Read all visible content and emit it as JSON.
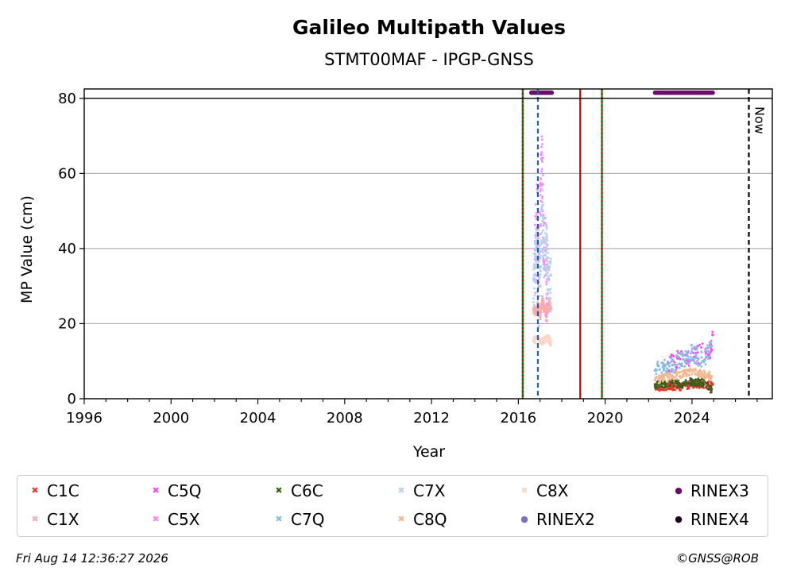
{
  "chart_data": {
    "type": "scatter",
    "title": "Galileo Multipath Values",
    "subtitle": "STMT00MAF - IPGP-GNSS",
    "xlabel": "Year",
    "ylabel": "MP Value (cm)",
    "xlim": [
      1996,
      2027.7
    ],
    "ylim": [
      0,
      82.5
    ],
    "x_ticks": [
      1996,
      2000,
      2004,
      2008,
      2012,
      2016,
      2020,
      2024
    ],
    "x_tick_labels": [
      "1996",
      "2000",
      "2004",
      "2008",
      "2012",
      "2016",
      "2020",
      "2024"
    ],
    "y_ticks": [
      0,
      20,
      40,
      60,
      80
    ],
    "y_tick_labels": [
      "0",
      "20",
      "40",
      "60",
      "80"
    ],
    "grid": "horizontal",
    "legend_position": "bottom",
    "vertical_lines": [
      {
        "x": 2016.2,
        "color": "#008000",
        "style": "solid"
      },
      {
        "x": 2016.2,
        "color": "#cc0000",
        "style": "dotted"
      },
      {
        "x": 2016.9,
        "color": "#1f5fa8",
        "style": "dashed"
      },
      {
        "x": 2018.85,
        "color": "#cc0000",
        "style": "solid"
      },
      {
        "x": 2019.85,
        "color": "#008000",
        "style": "solid"
      },
      {
        "x": 2019.85,
        "color": "#cc0000",
        "style": "dotted"
      },
      {
        "x": 2026.62,
        "color": "#000000",
        "style": "dashed",
        "label": "Now"
      }
    ],
    "series": [
      {
        "name": "C1C",
        "marker": "x",
        "color": "#e8372a",
        "segments": [
          {
            "x": [
              2022.3,
              2022.6,
              2022.9,
              2023.2,
              2023.5,
              2023.8,
              2024.1,
              2024.4,
              2024.7,
              2024.95
            ],
            "y": [
              3.2,
              3.1,
              3.3,
              3.4,
              3.2,
              3.5,
              4.0,
              3.8,
              3.6,
              3.9
            ]
          }
        ]
      },
      {
        "name": "C1X",
        "marker": "x",
        "color": "#ffaaaa",
        "segments": [
          {
            "x": [
              2016.7,
              2016.8,
              2016.9,
              2017.0,
              2017.1,
              2017.2,
              2017.3,
              2017.4,
              2017.5
            ],
            "y": [
              24,
              23,
              25,
              22,
              26,
              24,
              23,
              25,
              24
            ]
          }
        ]
      },
      {
        "name": "C5Q",
        "marker": "x",
        "color": "#ff44ff",
        "segments": [
          {
            "x": [
              2022.9,
              2024.9,
              2024.95
            ],
            "y": [
              9.5,
              13.0,
              17.0
            ]
          }
        ]
      },
      {
        "name": "C5X",
        "marker": "x",
        "color": "#ff88ff",
        "segments": [
          {
            "x": [
              2016.75,
              2016.85,
              2016.95,
              2017.05,
              2017.2,
              2017.35
            ],
            "y": [
              35,
              48,
              30,
              65,
              40,
              28
            ]
          }
        ]
      },
      {
        "name": "C6C",
        "marker": "x",
        "color": "#3a5f1a",
        "segments": [
          {
            "x": [
              2022.3,
              2022.7,
              2023.1,
              2023.6,
              2024.0,
              2024.5,
              2024.9
            ],
            "y": [
              3.8,
              4.0,
              4.1,
              3.9,
              4.6,
              4.3,
              2.5
            ]
          }
        ]
      },
      {
        "name": "C7Q",
        "marker": "x",
        "color": "#88bbe6",
        "segments": [
          {
            "x": [
              2022.3,
              2022.7,
              2023.1,
              2023.6,
              2024.0,
              2024.5,
              2024.9
            ],
            "y": [
              7.5,
              8.0,
              9.0,
              10.5,
              12.5,
              10.0,
              14.0
            ]
          }
        ]
      },
      {
        "name": "C7X",
        "marker": "x",
        "color": "#b8d0ea",
        "segments": [
          {
            "x": [
              2016.7,
              2016.8,
              2016.9,
              2017.0,
              2017.1,
              2017.2,
              2017.3,
              2017.4,
              2017.5
            ],
            "y": [
              32,
              38,
              45,
              30,
              50,
              35,
              40,
              29,
              33
            ]
          }
        ]
      },
      {
        "name": "C8Q",
        "marker": "x",
        "color": "#f3b88f",
        "segments": [
          {
            "x": [
              2022.3,
              2022.7,
              2023.1,
              2023.6,
              2024.0,
              2024.5,
              2024.9
            ],
            "y": [
              5.0,
              5.5,
              6.0,
              6.5,
              7.5,
              6.5,
              6.0
            ]
          }
        ]
      },
      {
        "name": "C8X",
        "marker": "x",
        "color": "#fbd6c8",
        "segments": [
          {
            "x": [
              2016.7,
              2016.9,
              2017.1,
              2017.3,
              2017.5
            ],
            "y": [
              15.5,
              16.0,
              15.0,
              16.5,
              15.0
            ]
          }
        ]
      },
      {
        "name": "RINEX2",
        "marker": "o",
        "color": "#7c6fc0",
        "segments": []
      },
      {
        "name": "RINEX3",
        "marker": "o",
        "color": "#6a0f6a",
        "segments": [
          {
            "x_range": [
              2016.6,
              2017.55
            ],
            "y": 81.5
          },
          {
            "x_range": [
              2022.3,
              2025.0
            ],
            "y": 81.5
          }
        ]
      },
      {
        "name": "RINEX4",
        "marker": "o",
        "color": "#1a001a",
        "segments": []
      }
    ]
  },
  "legend_items": [
    {
      "name": "C1C",
      "symbol": "✖",
      "color": "#e8372a"
    },
    {
      "name": "C1X",
      "symbol": "✖",
      "color": "#ffaaaa"
    },
    {
      "name": "C5Q",
      "symbol": "✖",
      "color": "#ff44ff"
    },
    {
      "name": "C5X",
      "symbol": "✖",
      "color": "#ff88ff"
    },
    {
      "name": "C6C",
      "symbol": "✖",
      "color": "#3a5f1a"
    },
    {
      "name": "C7Q",
      "symbol": "✖",
      "color": "#88bbe6"
    },
    {
      "name": "C7X",
      "symbol": "✖",
      "color": "#b8d0ea"
    },
    {
      "name": "C8Q",
      "symbol": "✖",
      "color": "#f3b88f"
    },
    {
      "name": "C8X",
      "symbol": "✖",
      "color": "#fbd6c8"
    },
    {
      "name": "RINEX2",
      "symbol": "●",
      "color": "#7c6fc0"
    },
    {
      "name": "RINEX3",
      "symbol": "●",
      "color": "#6a0f6a"
    },
    {
      "name": "RINEX4",
      "symbol": "●",
      "color": "#1a001a"
    }
  ],
  "footer": {
    "timestamp": "Fri Aug 14 12:36:27 2026",
    "credit": "©GNSS@ROB"
  }
}
